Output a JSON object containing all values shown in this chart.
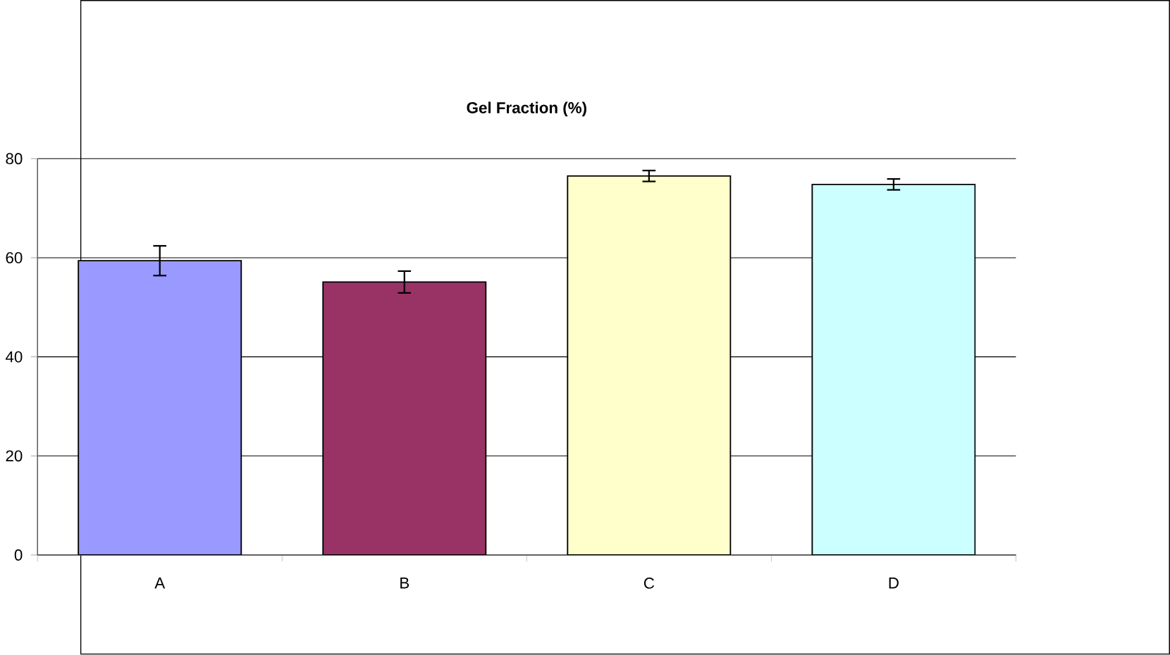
{
  "chart_data": {
    "type": "bar",
    "title": "Gel Fraction (%)",
    "categories": [
      "A",
      "B",
      "C",
      "D"
    ],
    "values": [
      59.4,
      55.1,
      76.5,
      74.8
    ],
    "errors": [
      3.0,
      2.2,
      1.1,
      1.1
    ],
    "colors": [
      "#9999ff",
      "#993366",
      "#ffffcc",
      "#ccffff"
    ],
    "ylim": [
      0,
      80
    ],
    "yticks": [
      0,
      20,
      40,
      60,
      80
    ],
    "grid": "y"
  }
}
